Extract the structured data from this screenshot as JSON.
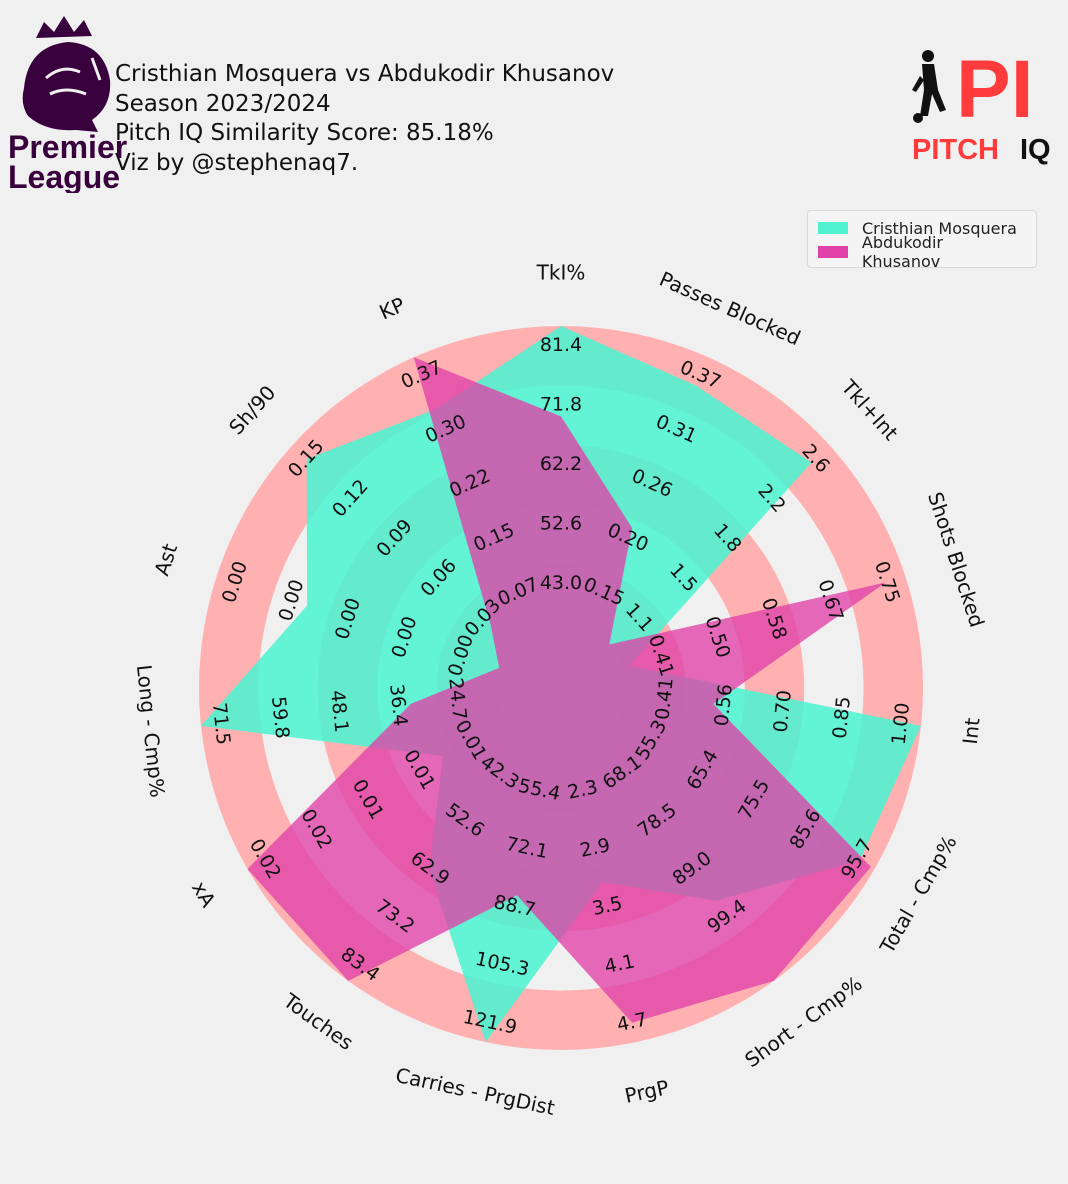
{
  "title": {
    "line1": "Cristhian Mosquera vs Abdukodir Khusanov",
    "line2": "Season 2023/2024",
    "line3": "Pitch IQ Similarity Score: 85.18%",
    "line4": "Viz by @stephenaq7."
  },
  "logos": {
    "premier_league_line1": "Premier",
    "premier_league_line2": "League",
    "pitch_iq_mark": "PI",
    "pitch_iq_word1": "PITCH",
    "pitch_iq_word2": "IQ"
  },
  "colors": {
    "player1": "#4ef2d0",
    "player2": "#e040a8",
    "ring_band": "#ffb0b0",
    "pl_purple": "#38003c",
    "piq_red": "#ff3b3b"
  },
  "chart_data": {
    "type": "radar",
    "legend_position": "top-right",
    "params": [
      {
        "label": "TkI%",
        "ticks": [
          "43.0",
          "52.6",
          "62.2",
          "71.8",
          "81.4"
        ],
        "min": 33.4,
        "max": 81.4
      },
      {
        "label": "Passes Blocked",
        "ticks": [
          "0.15",
          "0.20",
          "0.26",
          "0.31",
          "0.37"
        ],
        "min": 0.1,
        "max": 0.37
      },
      {
        "label": "Tkl+Int",
        "ticks": [
          "1.1",
          "1.5",
          "1.8",
          "2.2",
          "2.6"
        ],
        "min": 0.7,
        "max": 2.6
      },
      {
        "label": "Shots Blocked",
        "ticks": [
          "0.41",
          "0.50",
          "0.58",
          "0.67",
          "0.75"
        ],
        "min": 0.32,
        "max": 0.75
      },
      {
        "label": "Int",
        "ticks": [
          "0.41",
          "0.56",
          "0.70",
          "0.85",
          "1.00"
        ],
        "min": 0.26,
        "max": 1.0
      },
      {
        "label": "Total - Cmp%",
        "ticks": [
          "55.3",
          "65.4",
          "75.5",
          "85.6",
          "95.7"
        ],
        "min": 45.2,
        "max": 95.7
      },
      {
        "label": "Short - Cmp%",
        "ticks": [
          "68.1",
          "78.5",
          "89.0",
          "99.4"
        ],
        "min": 47.2,
        "max": 99.4
      },
      {
        "label": "PrgP",
        "ticks": [
          "2.3",
          "2.9",
          "3.5",
          "4.1",
          "4.7"
        ],
        "min": 1.7,
        "max": 4.7
      },
      {
        "label": "Carries - PrgDist",
        "ticks": [
          "55.4",
          "72.1",
          "88.7",
          "105.3",
          "121.9"
        ],
        "min": 38.8,
        "max": 121.9
      },
      {
        "label": "Touches",
        "ticks": [
          "42.3",
          "52.6",
          "62.9",
          "73.2",
          "83.4"
        ],
        "min": 32.0,
        "max": 83.4
      },
      {
        "label": "xA",
        "ticks": [
          "0.01",
          "0.01",
          "0.01",
          "0.02",
          "0.02"
        ],
        "min": 0.0,
        "max": 0.02
      },
      {
        "label": "Long - Cmp%",
        "ticks": [
          "24.7",
          "36.4",
          "48.1",
          "59.8",
          "71.5"
        ],
        "min": 13.0,
        "max": 71.5
      },
      {
        "label": "Ast",
        "ticks": [
          "0.00",
          "0.00",
          "0.00",
          "0.00",
          "0.00"
        ],
        "min": 0.0,
        "max": 1.0
      },
      {
        "label": "Sh/90",
        "ticks": [
          "0.03",
          "0.06",
          "0.09",
          "0.12",
          "0.15"
        ],
        "min": 0.0,
        "max": 0.15
      },
      {
        "label": "KP",
        "ticks": [
          "0.07",
          "0.15",
          "0.22",
          "0.30",
          "0.37"
        ],
        "min": 0.0,
        "max": 0.37
      }
    ],
    "series": [
      {
        "name": "Cristhian Mosquera",
        "values": [
          81.4,
          0.342,
          2.44,
          0.33,
          1.0,
          92.8,
          82.0,
          3.05,
          121.9,
          59.6,
          0.0048,
          71.5,
          0.68,
          0.14,
          0.3
        ]
      },
      {
        "name": "Abdukodir Khusanov",
        "values": [
          66.8,
          0.2,
          0.7,
          0.72,
          0.48,
          95.0,
          99.4,
          4.5,
          79.9,
          83.4,
          0.02,
          29.9,
          0.0,
          0.015,
          0.37
        ]
      }
    ]
  }
}
